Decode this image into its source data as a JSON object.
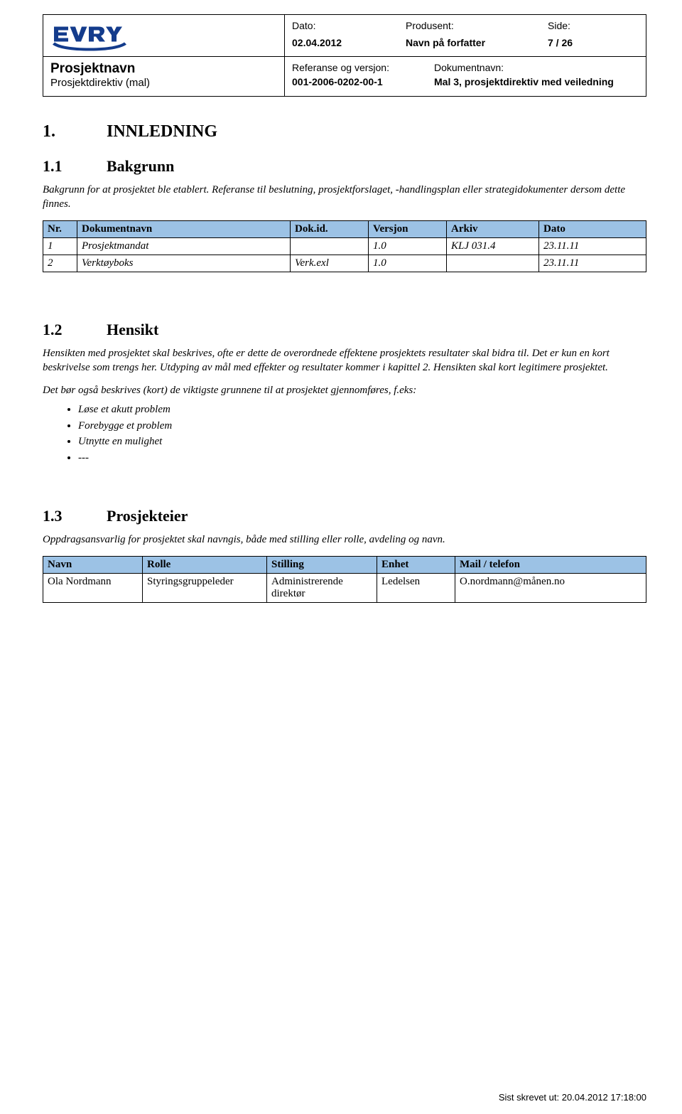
{
  "header": {
    "meta": {
      "date_label": "Dato:",
      "date_value": "02.04.2012",
      "producer_label": "Produsent:",
      "producer_value": "Navn på forfatter",
      "page_label": "Side:",
      "page_value": "7 / 26"
    },
    "project_title": "Prosjektnavn",
    "project_subtitle": "Prosjektdirektiv (mal)",
    "ref": {
      "ref_label": "Referanse og versjon:",
      "ref_value": "001-2006-0202-00-1",
      "docname_label": "Dokumentnavn:",
      "docname_value": "Mal 3, prosjektdirektiv med veiledning"
    },
    "logo_fill": "#143c8c"
  },
  "colors": {
    "table_header_bg": "#9cc2e5",
    "border": "#000000",
    "text": "#000000"
  },
  "sections": {
    "s1": {
      "num": "1.",
      "title": "INNLEDNING"
    },
    "s11": {
      "num": "1.1",
      "title": "Bakgrunn",
      "para": "Bakgrunn for at prosjektet ble etablert.  Referanse til beslutning, prosjektforslaget, -handlingsplan eller strategidokumenter dersom dette finnes."
    },
    "s12": {
      "num": "1.2",
      "title": "Hensikt",
      "para1": "Hensikten med prosjektet skal beskrives, ofte er dette de overordnede effektene prosjektets resultater skal bidra til. Det er kun en kort beskrivelse som trengs her.  Utdyping av mål med effekter og resultater kommer i kapittel 2.  Hensikten skal kort legitimere prosjektet.",
      "para2": "Det bør også beskrives (kort) de viktigste grunnene til at prosjektet gjennomføres, f.eks:",
      "bullets": [
        "Løse et akutt problem",
        "Forebygge et problem",
        "Utnytte en mulighet",
        "---"
      ]
    },
    "s13": {
      "num": "1.3",
      "title": "Prosjekteier",
      "para": "Oppdragsansvarlig for prosjektet skal navngis, både med stilling eller rolle, avdeling og navn."
    }
  },
  "table1": {
    "headers": [
      "Nr.",
      "Dokumentnavn",
      "Dok.id.",
      "Versjon",
      "Arkiv",
      "Dato"
    ],
    "col_widths": [
      "48px",
      "300px",
      "110px",
      "110px",
      "130px",
      ""
    ],
    "rows": [
      [
        "1",
        "Prosjektmandat",
        "",
        "1.0",
        "KLJ 031.4",
        "23.11.11"
      ],
      [
        "2",
        "Verktøyboks",
        "Verk.exl",
        "1.0",
        "",
        "23.11.11"
      ]
    ]
  },
  "table2": {
    "headers": [
      "Navn",
      "Rolle",
      "Stilling",
      "Enhet",
      "Mail / telefon"
    ],
    "col_widths": [
      "140px",
      "175px",
      "155px",
      "110px",
      ""
    ],
    "rows": [
      [
        "Ola Nordmann",
        "Styringsgruppeleder",
        "Administrerende direktør",
        "Ledelsen",
        "O.nordmann@månen.no"
      ]
    ]
  },
  "footer": "Sist skrevet ut: 20.04.2012 17:18:00"
}
